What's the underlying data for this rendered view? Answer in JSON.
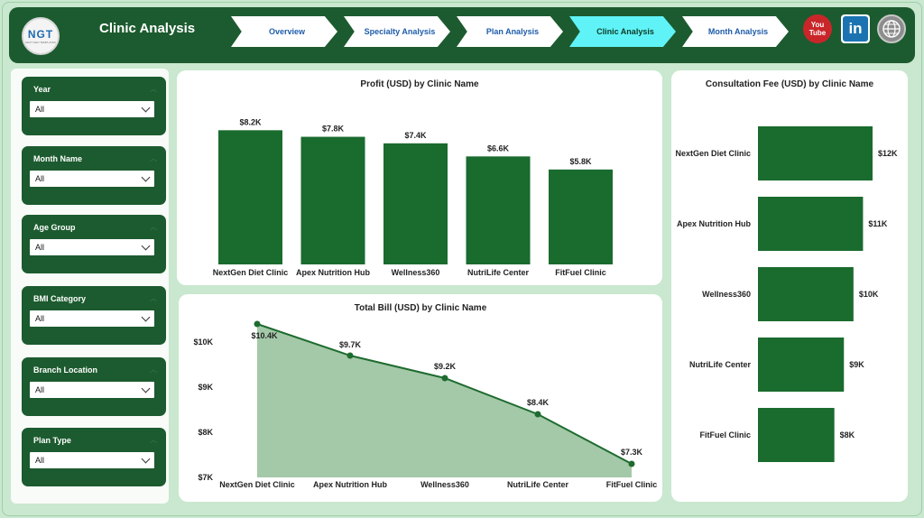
{
  "header": {
    "title": "Clinic Analysis",
    "logo_text": "NGT",
    "logo_sub": "NEXT GEN TEMPLATES",
    "tabs": [
      {
        "label": "Overview",
        "active": false
      },
      {
        "label": "Specialty Analysis",
        "active": false
      },
      {
        "label": "Plan Analysis",
        "active": false
      },
      {
        "label": "Clinic Analysis",
        "active": true
      },
      {
        "label": "Month Analysis",
        "active": false
      }
    ],
    "social": {
      "youtube_top": "You",
      "youtube_bottom": "Tube",
      "linkedin": "in"
    }
  },
  "slicers": [
    {
      "label": "Year",
      "value": "All"
    },
    {
      "label": "Month Name",
      "value": "All"
    },
    {
      "label": "Age Group",
      "value": "All"
    },
    {
      "label": "BMI Category",
      "value": "All"
    },
    {
      "label": "Branch Location",
      "value": "All"
    },
    {
      "label": "Plan Type",
      "value": "All"
    }
  ],
  "colors": {
    "bar": "#1a6b2e",
    "area_fill": "#a3c9a8",
    "line": "#1e6b2f",
    "header": "#1c5b2f",
    "active_tab": "#5ff3f7"
  },
  "chart_data": [
    {
      "type": "bar",
      "title": "Profit (USD) by Clinic Name",
      "categories": [
        "NextGen Diet Clinic",
        "Apex Nutrition Hub",
        "Wellness360",
        "NutriLife Center",
        "FitFuel Clinic"
      ],
      "values": [
        8.2,
        7.8,
        7.4,
        6.6,
        5.8
      ],
      "data_labels": [
        "$8.2K",
        "$7.8K",
        "$7.4K",
        "$6.6K",
        "$5.8K"
      ],
      "ylim": [
        0,
        9.1
      ]
    },
    {
      "type": "area",
      "title": "Total Bill (USD) by Clinic Name",
      "categories": [
        "NextGen Diet Clinic",
        "Apex Nutrition Hub",
        "Wellness360",
        "NutriLife Center",
        "FitFuel Clinic"
      ],
      "values": [
        10.4,
        9.7,
        9.2,
        8.4,
        7.3
      ],
      "data_labels": [
        "$10.4K",
        "$9.7K",
        "$9.2K",
        "$8.4K",
        "$7.3K"
      ],
      "yticks": [
        "$10K",
        "$9K",
        "$8K",
        "$7K"
      ],
      "ytick_values": [
        10,
        9,
        8,
        7
      ],
      "ylim": [
        7,
        10.7
      ]
    },
    {
      "type": "bar",
      "orientation": "horizontal",
      "title": "Consultation Fee (USD) by Clinic Name",
      "categories": [
        "NextGen Diet Clinic",
        "Apex Nutrition Hub",
        "Wellness360",
        "NutriLife Center",
        "FitFuel Clinic"
      ],
      "values": [
        12,
        11,
        10,
        9,
        8
      ],
      "data_labels": [
        "$12K",
        "$11K",
        "$10K",
        "$9K",
        "$8K"
      ],
      "xlim": [
        0,
        12
      ]
    }
  ]
}
